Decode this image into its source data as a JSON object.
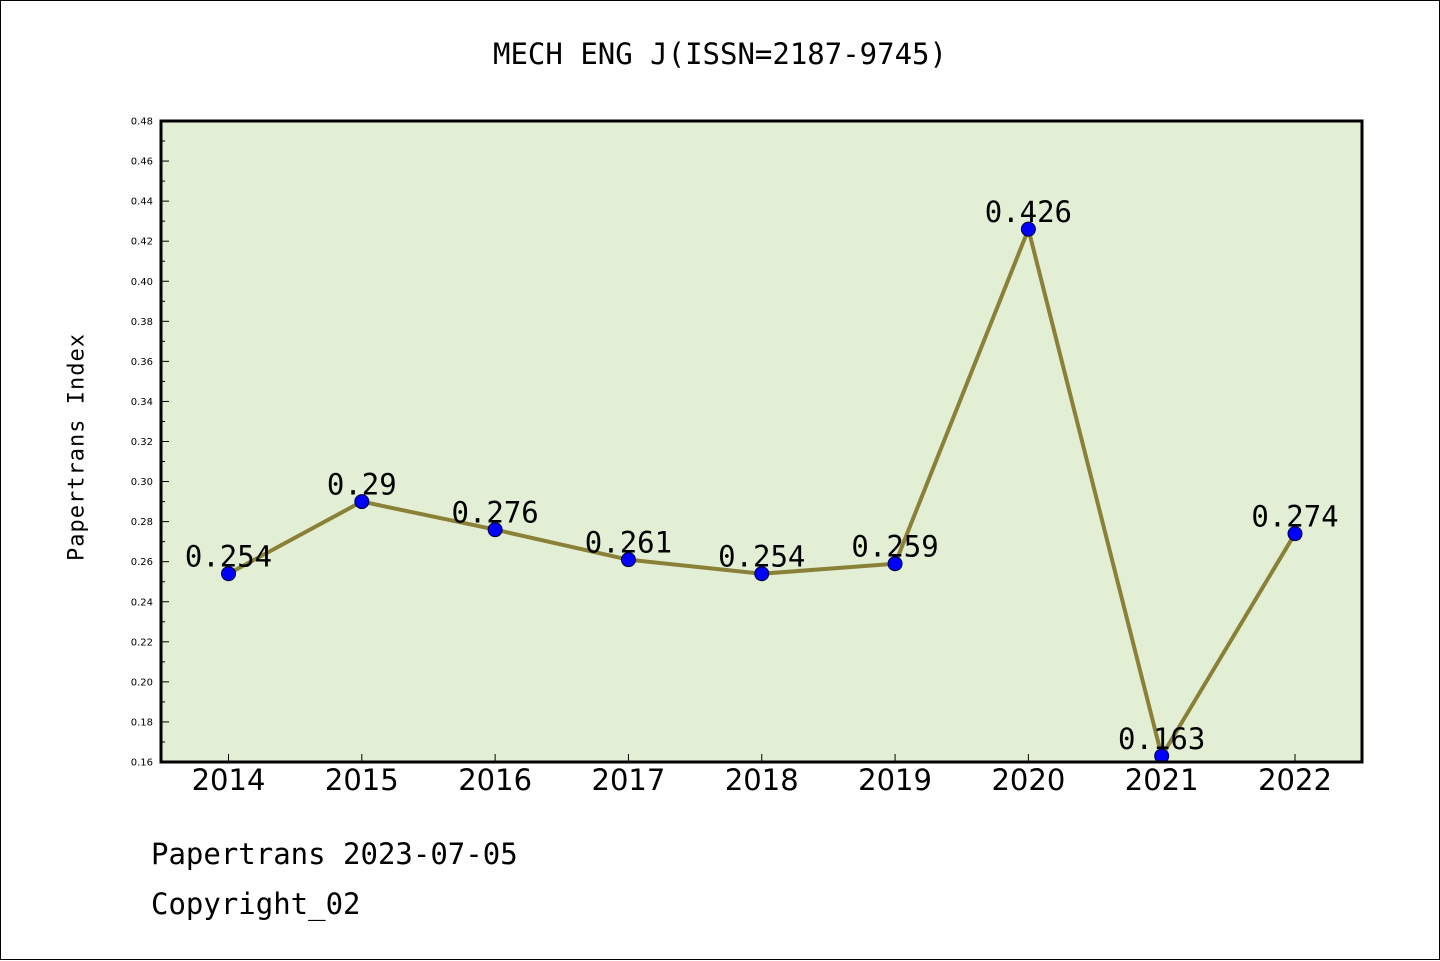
{
  "title": "MECH ENG J(ISSN=2187-9745)",
  "footer": {
    "date_line": "Papertrans 2023-07-05",
    "copyright_line": "Copyright_02"
  },
  "colors": {
    "plot_background": "#e2efd4",
    "line": "#8b8038",
    "marker": "#0000ff"
  },
  "chart_data": {
    "type": "line",
    "ylabel": "Papertrans Index",
    "xlabel": "",
    "categories": [
      "2014",
      "2015",
      "2016",
      "2017",
      "2018",
      "2019",
      "2020",
      "2021",
      "2022"
    ],
    "values": [
      0.254,
      0.29,
      0.276,
      0.261,
      0.254,
      0.259,
      0.426,
      0.163,
      0.274
    ],
    "data_labels": [
      "0.254",
      "0.29",
      "0.276",
      "0.261",
      "0.254",
      "0.259",
      "0.426",
      "0.163",
      "0.274"
    ],
    "ylim": [
      0.16,
      0.48
    ],
    "yticks": [
      "0.16",
      "0.18",
      "0.20",
      "0.22",
      "0.24",
      "0.26",
      "0.28",
      "0.30",
      "0.32",
      "0.34",
      "0.36",
      "0.38",
      "0.40",
      "0.42",
      "0.44",
      "0.46",
      "0.48"
    ],
    "grid": false,
    "legend": "none"
  }
}
